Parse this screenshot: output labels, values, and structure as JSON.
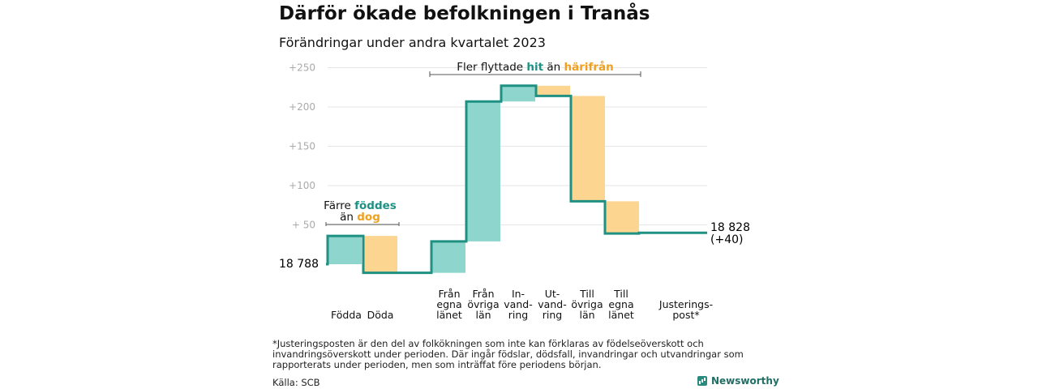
{
  "header": {
    "title": "Därför ökade befolkningen i Tranås",
    "subtitle": "Förändringar under andra kvartalet 2023"
  },
  "colors": {
    "increase": "#8dd5cd",
    "decrease": "#fcd690",
    "line": "#1f9183",
    "teal_text": "#1f9183",
    "orange_text": "#f0a020"
  },
  "chart_data": {
    "type": "waterfall",
    "title": "Därför ökade befolkningen i Tranås",
    "subtitle": "Förändringar under andra kvartalet 2023",
    "start_value": 18788,
    "start_label": "18  788",
    "end_label_lines": [
      "18 828",
      "(+40)"
    ],
    "y_axis": {
      "ticks": [
        250,
        200,
        150,
        100,
        50
      ],
      "tick_labels": [
        "+250",
        "+200",
        "+150",
        "+100",
        "+  50"
      ],
      "range": [
        -12,
        255
      ]
    },
    "steps": [
      {
        "label_lines": [
          "Födda"
        ],
        "start": 0,
        "end": 36,
        "kind": "increase"
      },
      {
        "label_lines": [
          "Döda"
        ],
        "start": 36,
        "end": -11,
        "kind": "decrease"
      },
      {
        "label_lines": [
          "Från",
          "egna",
          "länet"
        ],
        "start": -11,
        "end": 29,
        "kind": "increase"
      },
      {
        "label_lines": [
          "Från",
          "övriga",
          "län"
        ],
        "start": 29,
        "end": 207,
        "kind": "increase"
      },
      {
        "label_lines": [
          "In-",
          "vand-",
          "ring"
        ],
        "start": 207,
        "end": 227,
        "kind": "increase"
      },
      {
        "label_lines": [
          "Ut-",
          "vand-",
          "ring"
        ],
        "start": 227,
        "end": 214,
        "kind": "decrease"
      },
      {
        "label_lines": [
          "Till",
          "övriga",
          "län"
        ],
        "start": 214,
        "end": 80,
        "kind": "decrease"
      },
      {
        "label_lines": [
          "Till",
          "egna",
          "länet"
        ],
        "start": 80,
        "end": 39,
        "kind": "decrease"
      },
      {
        "label_lines": [
          "Justerings-",
          "post*"
        ],
        "start": 39,
        "end": 40,
        "kind": "increase"
      }
    ],
    "annotations": [
      {
        "id": "births",
        "line1": "Färre",
        "highlight1": "föddes",
        "line2": "än",
        "highlight2": "dog"
      },
      {
        "id": "migration",
        "line1": "Fler flyttade",
        "highlight1": "hit",
        "line2": "än",
        "highlight2": "härifrån"
      }
    ]
  },
  "footnote": "*Justeringsposten är den del av folkökningen som inte kan förklaras av födelseöverskott och invandringsöverskott under perioden. Där ingår födslar, dödsfall, invandringar och utvandringar som rapporterats under perioden, men som inträffat före periodens början.",
  "source": "Källa: SCB",
  "logo": {
    "text": "Newsworthy"
  }
}
